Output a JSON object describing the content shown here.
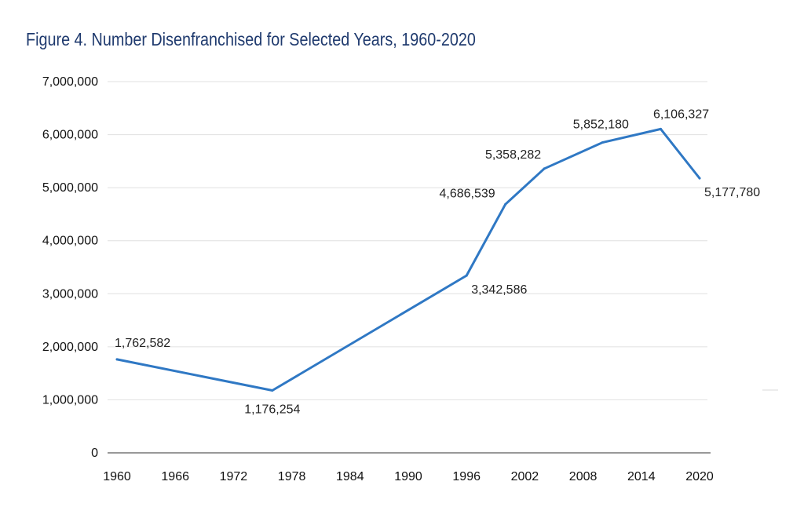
{
  "chart_data": {
    "type": "line",
    "title": "Figure 4. Number Disenfranchised for Selected Years, 1960-2020",
    "xlabel": "",
    "ylabel": "",
    "x_ticks": [
      "1960",
      "1966",
      "1972",
      "1978",
      "1984",
      "1990",
      "1996",
      "2002",
      "2008",
      "2014",
      "2020"
    ],
    "y_ticks": [
      "0",
      "1,000,000",
      "2,000,000",
      "3,000,000",
      "4,000,000",
      "5,000,000",
      "6,000,000",
      "7,000,000"
    ],
    "xlim": [
      1960,
      2020
    ],
    "ylim": [
      0,
      7000000
    ],
    "grid": true,
    "legend": "none",
    "series": [
      {
        "color": "#2f78c4",
        "points": [
          {
            "x": 1960,
            "y": 1762582,
            "label": "1,762,582",
            "label_pos": "above"
          },
          {
            "x": 1976,
            "y": 1176254,
            "label": "1,176,254",
            "label_pos": "below"
          },
          {
            "x": 1996,
            "y": 3342586,
            "label": "3,342,586",
            "label_pos": "below-right"
          },
          {
            "x": 2000,
            "y": 4686539,
            "label": "4,686,539",
            "label_pos": "left"
          },
          {
            "x": 2004,
            "y": 5358282,
            "label": "5,358,282",
            "label_pos": "above-left"
          },
          {
            "x": 2010,
            "y": 5852180,
            "label": "5,852,180",
            "label_pos": "above"
          },
          {
            "x": 2016,
            "y": 6106327,
            "label": "6,106,327",
            "label_pos": "above"
          },
          {
            "x": 2020,
            "y": 5177780,
            "label": "5,177,780",
            "label_pos": "below-right"
          }
        ]
      }
    ]
  }
}
